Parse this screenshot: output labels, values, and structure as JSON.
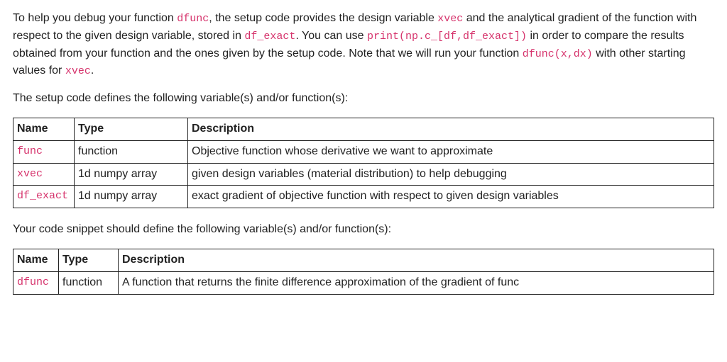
{
  "colors": {
    "text": "#222222",
    "code_accent": "#d6336c",
    "border": "#222222",
    "background": "#ffffff"
  },
  "para1": {
    "s1": "To help you debug your function ",
    "c1": "dfunc",
    "s2": ", the setup code provides the design variable ",
    "c2": "xvec",
    "s3": " and the analytical gradient of the function with respect to the given design variable, stored in ",
    "c3": "df_exact",
    "s4": ". You can use ",
    "c4": "print(np.c_[df,df_exact])",
    "s5": " in order to compare the results obtained from your function and the ones given by the setup code. Note that we will run your function ",
    "c5": "dfunc(x,dx)",
    "s6": " with other starting values for ",
    "c6": "xvec",
    "s7": "."
  },
  "para2": "The setup code defines the following variable(s) and/or function(s):",
  "table1": {
    "headers": {
      "name": "Name",
      "type": "Type",
      "desc": "Description"
    },
    "rows": [
      {
        "name": "func",
        "type": "function",
        "desc": "Objective function whose derivative we want to approximate"
      },
      {
        "name": "xvec",
        "type": "1d numpy array",
        "desc": "given design variables (material distribution) to help debugging"
      },
      {
        "name": "df_exact",
        "type": "1d numpy array",
        "desc": "exact gradient of objective function with respect to given design variables"
      }
    ]
  },
  "para3": "Your code snippet should define the following variable(s) and/or function(s):",
  "table2": {
    "headers": {
      "name": "Name",
      "type": "Type",
      "desc": "Description"
    },
    "rows": [
      {
        "name": "dfunc",
        "type": "function",
        "desc": "A function that returns the finite difference approximation of the gradient of func"
      }
    ]
  }
}
